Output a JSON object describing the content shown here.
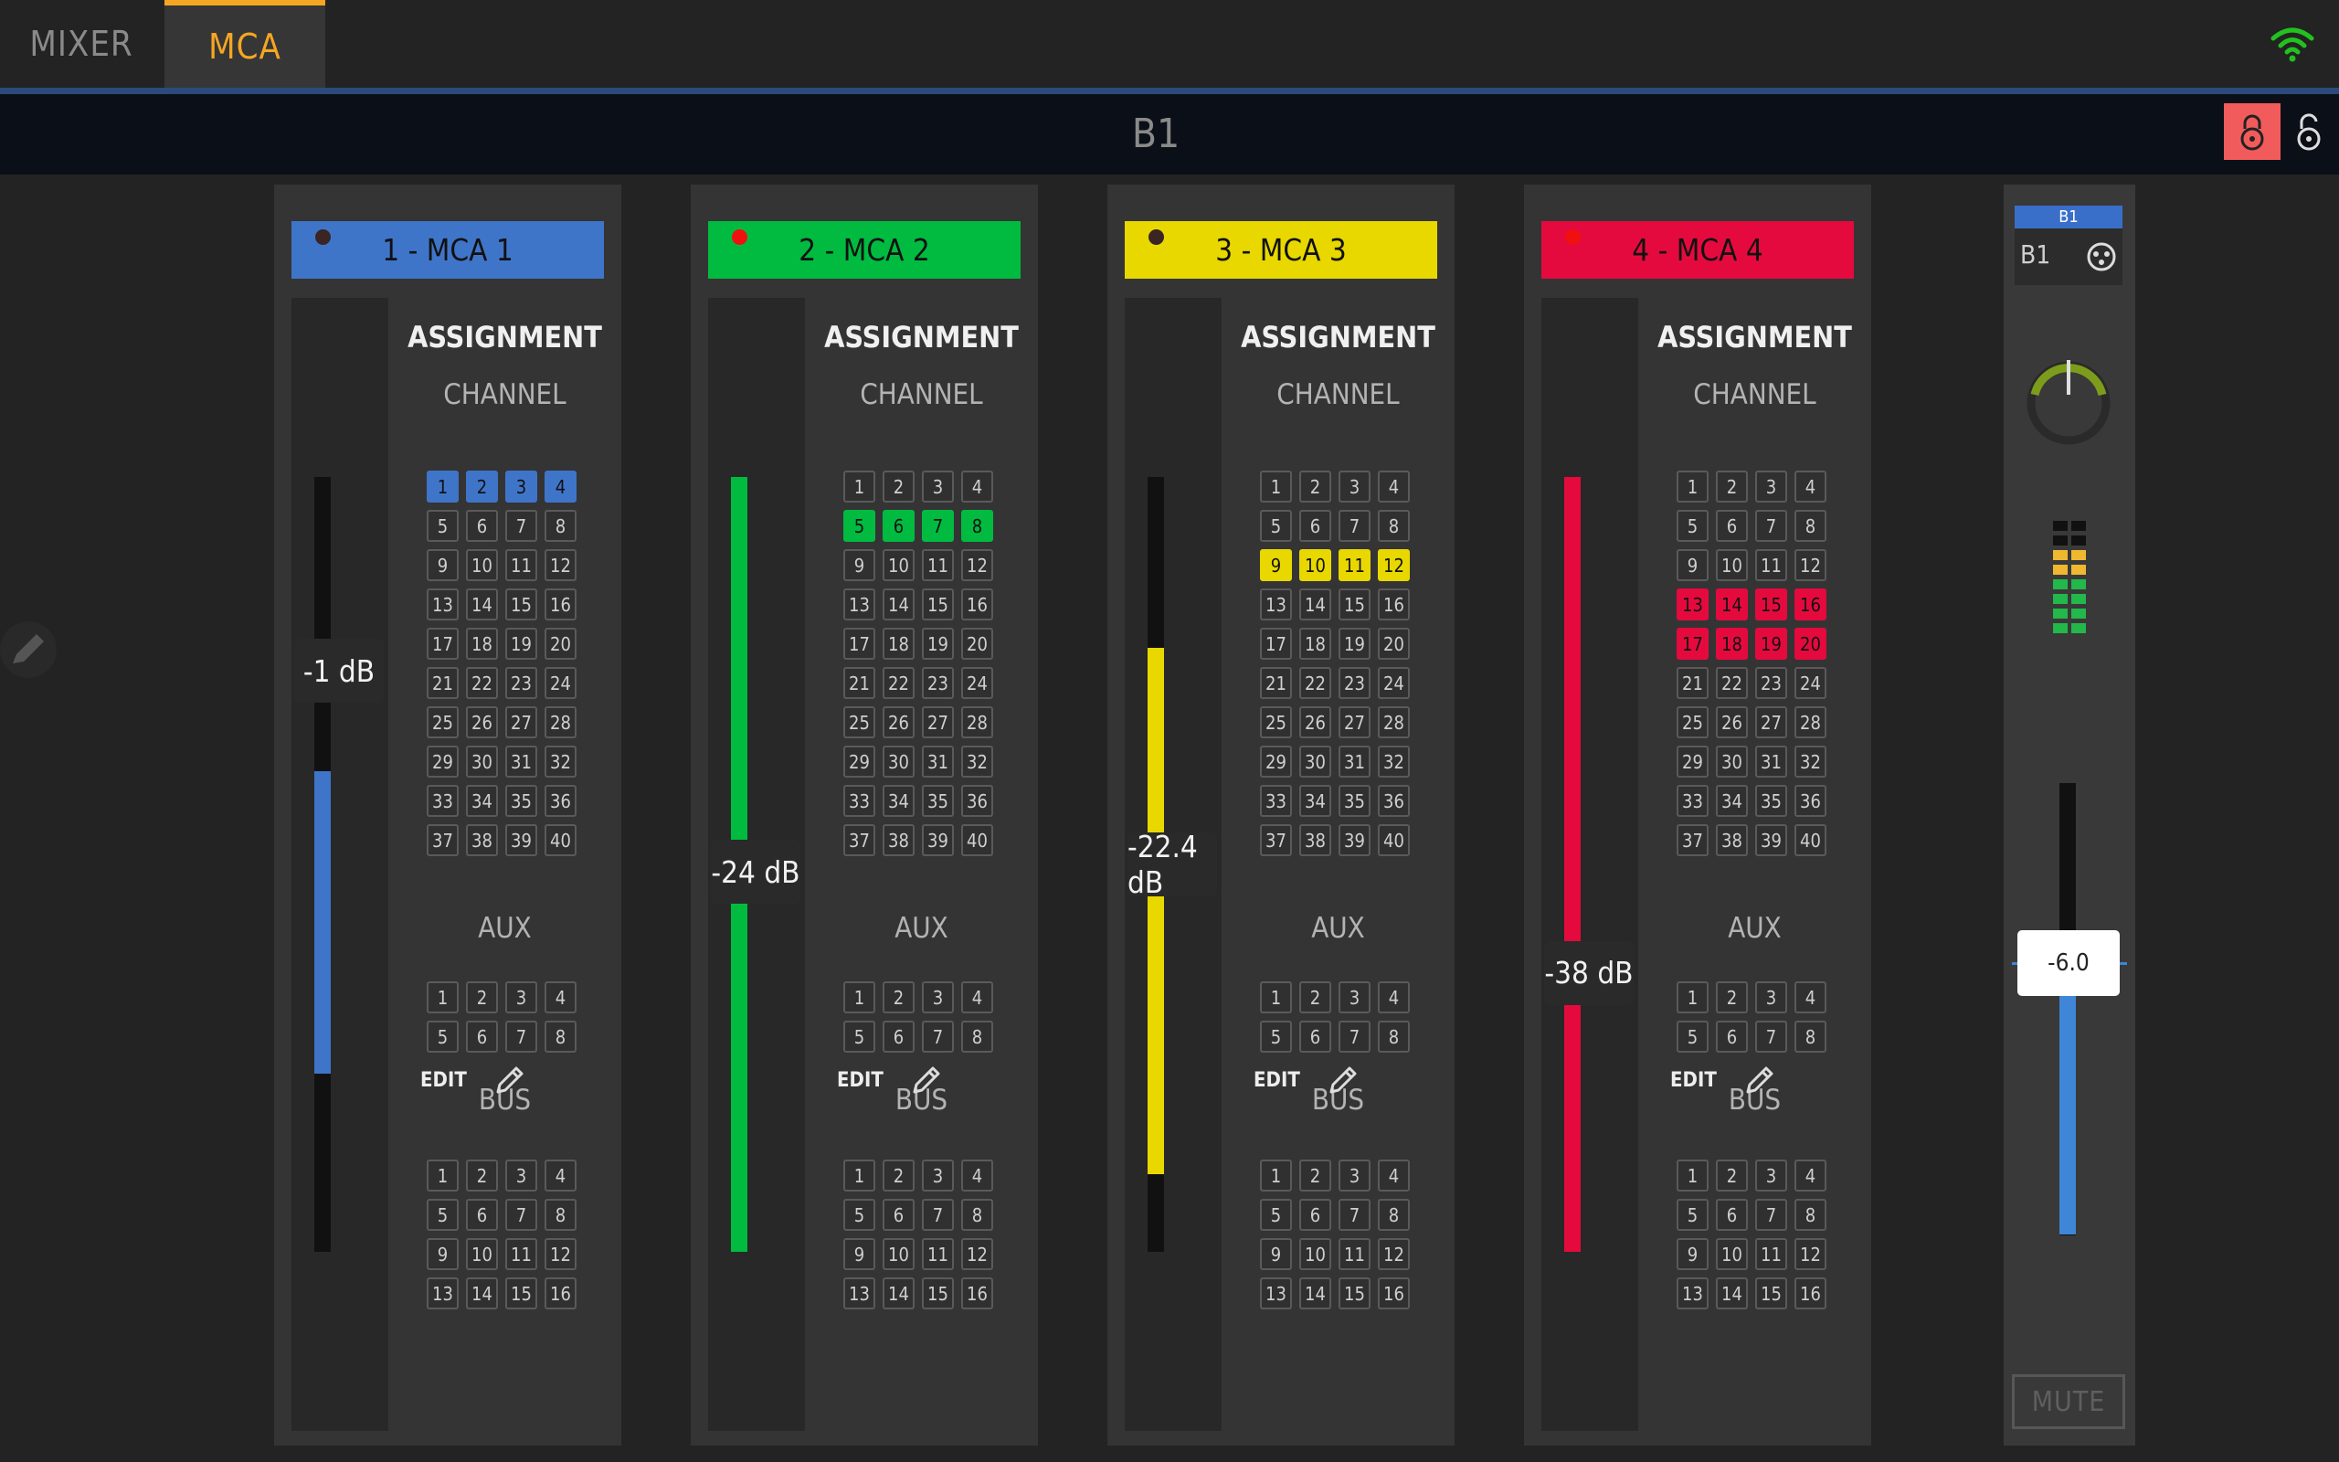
{
  "tabs": [
    {
      "label": "MIXER",
      "active": false
    },
    {
      "label": "MCA",
      "active": true
    }
  ],
  "header": {
    "title": "B1"
  },
  "strips": [
    {
      "name": "1 - MCA 1",
      "color": "#3f75c9",
      "level_db": "-1 dB",
      "fill_fraction": [
        0.38,
        0.77
      ],
      "led": "dim",
      "assignment_label": "ASSIGNMENT",
      "channel_label": "CHANNEL",
      "aux_label": "AUX",
      "bus_label": "BUS",
      "edit_label": "EDIT",
      "channels_on": [
        1,
        2,
        3,
        4
      ],
      "channels": [
        "1",
        "2",
        "3",
        "4",
        "5",
        "6",
        "7",
        "8",
        "9",
        "10",
        "11",
        "12",
        "13",
        "14",
        "15",
        "16",
        "17",
        "18",
        "19",
        "20",
        "21",
        "22",
        "23",
        "24",
        "25",
        "26",
        "27",
        "28",
        "29",
        "30",
        "31",
        "32",
        "33",
        "34",
        "35",
        "36",
        "37",
        "38",
        "39",
        "40"
      ],
      "aux": [
        "1",
        "2",
        "3",
        "4",
        "5",
        "6",
        "7",
        "8"
      ],
      "bus": [
        "1",
        "2",
        "3",
        "4",
        "5",
        "6",
        "7",
        "8",
        "9",
        "10",
        "11",
        "12",
        "13",
        "14",
        "15",
        "16"
      ]
    },
    {
      "name": "2 - MCA 2",
      "color": "#00bb3f",
      "level_db": "-24 dB",
      "fill_fraction": [
        0.0,
        1.0
      ],
      "led": "red",
      "assignment_label": "ASSIGNMENT",
      "channel_label": "CHANNEL",
      "aux_label": "AUX",
      "bus_label": "BUS",
      "edit_label": "EDIT",
      "channels_on": [
        5,
        6,
        7,
        8
      ],
      "channels": [
        "1",
        "2",
        "3",
        "4",
        "5",
        "6",
        "7",
        "8",
        "9",
        "10",
        "11",
        "12",
        "13",
        "14",
        "15",
        "16",
        "17",
        "18",
        "19",
        "20",
        "21",
        "22",
        "23",
        "24",
        "25",
        "26",
        "27",
        "28",
        "29",
        "30",
        "31",
        "32",
        "33",
        "34",
        "35",
        "36",
        "37",
        "38",
        "39",
        "40"
      ],
      "aux": [
        "1",
        "2",
        "3",
        "4",
        "5",
        "6",
        "7",
        "8"
      ],
      "bus": [
        "1",
        "2",
        "3",
        "4",
        "5",
        "6",
        "7",
        "8",
        "9",
        "10",
        "11",
        "12",
        "13",
        "14",
        "15",
        "16"
      ]
    },
    {
      "name": "3 - MCA 3",
      "color": "#e8d800",
      "level_db": "-22.4 dB",
      "fill_fraction": [
        0.22,
        0.9
      ],
      "led": "dim",
      "assignment_label": "ASSIGNMENT",
      "channel_label": "CHANNEL",
      "aux_label": "AUX",
      "bus_label": "BUS",
      "edit_label": "EDIT",
      "channels_on": [
        9,
        10,
        11,
        12
      ],
      "channels": [
        "1",
        "2",
        "3",
        "4",
        "5",
        "6",
        "7",
        "8",
        "9",
        "10",
        "11",
        "12",
        "13",
        "14",
        "15",
        "16",
        "17",
        "18",
        "19",
        "20",
        "21",
        "22",
        "23",
        "24",
        "25",
        "26",
        "27",
        "28",
        "29",
        "30",
        "31",
        "32",
        "33",
        "34",
        "35",
        "36",
        "37",
        "38",
        "39",
        "40"
      ],
      "aux": [
        "1",
        "2",
        "3",
        "4",
        "5",
        "6",
        "7",
        "8"
      ],
      "bus": [
        "1",
        "2",
        "3",
        "4",
        "5",
        "6",
        "7",
        "8",
        "9",
        "10",
        "11",
        "12",
        "13",
        "14",
        "15",
        "16"
      ]
    },
    {
      "name": "4 - MCA 4",
      "color": "#e50a3e",
      "level_db": "-38 dB",
      "fill_fraction": [
        0.0,
        1.0
      ],
      "led": "red",
      "assignment_label": "ASSIGNMENT",
      "channel_label": "CHANNEL",
      "aux_label": "AUX",
      "bus_label": "BUS",
      "edit_label": "EDIT",
      "channels_on": [
        13,
        14,
        15,
        16,
        17,
        18,
        19,
        20
      ],
      "channels": [
        "1",
        "2",
        "3",
        "4",
        "5",
        "6",
        "7",
        "8",
        "9",
        "10",
        "11",
        "12",
        "13",
        "14",
        "15",
        "16",
        "17",
        "18",
        "19",
        "20",
        "21",
        "22",
        "23",
        "24",
        "25",
        "26",
        "27",
        "28",
        "29",
        "30",
        "31",
        "32",
        "33",
        "34",
        "35",
        "36",
        "37",
        "38",
        "39",
        "40"
      ],
      "aux": [
        "1",
        "2",
        "3",
        "4",
        "5",
        "6",
        "7",
        "8"
      ],
      "bus": [
        "1",
        "2",
        "3",
        "4",
        "5",
        "6",
        "7",
        "8",
        "9",
        "10",
        "11",
        "12",
        "13",
        "14",
        "15",
        "16"
      ]
    }
  ],
  "strip_levels": [
    0.25,
    0.51,
    0.5,
    0.64
  ],
  "master": {
    "tag": "B1",
    "label": "B1",
    "value": "-6.0",
    "mute_label": "MUTE",
    "fader_fraction": 0.6
  },
  "icons": {
    "wifi": "wifi-icon",
    "lock_on": "lock-icon",
    "lock_off": "unlock-icon",
    "pencil": "pencil-icon",
    "patch": "xlr-icon"
  }
}
